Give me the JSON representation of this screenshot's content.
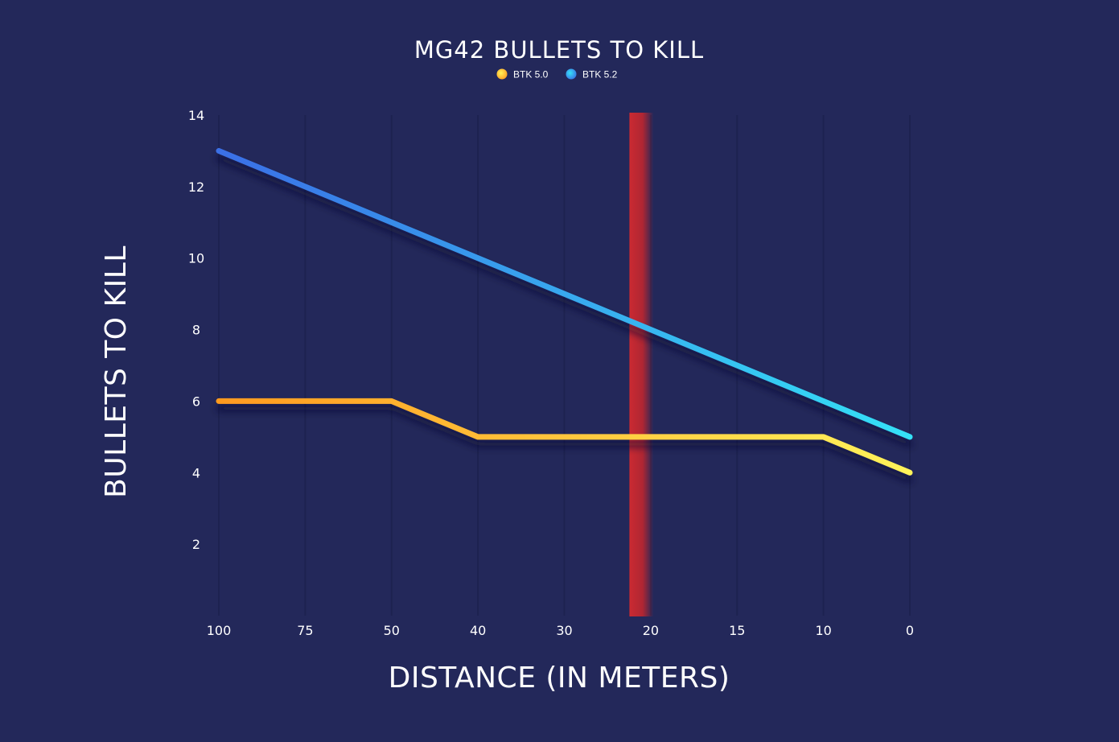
{
  "chart_data": {
    "type": "line",
    "title": "MG42 BULLETS TO KILL",
    "xlabel": "DISTANCE (IN METERS)",
    "ylabel": "BULLETS TO KILL",
    "x_categories": [
      "100",
      "75",
      "50",
      "40",
      "30",
      "20",
      "15",
      "10",
      "0"
    ],
    "yticks": [
      2,
      4,
      6,
      8,
      10,
      12,
      14
    ],
    "ylim": [
      0,
      14
    ],
    "grid": "vertical",
    "legend_position": "top-center",
    "highlight_distance": 22,
    "series": [
      {
        "name": "BTK 5.0",
        "color_start": "#ff9a1f",
        "color_end": "#fff35a",
        "points": [
          {
            "x": 100,
            "y": 6
          },
          {
            "x": 50,
            "y": 6
          },
          {
            "x": 40,
            "y": 5
          },
          {
            "x": 10,
            "y": 5
          },
          {
            "x": 0,
            "y": 4
          }
        ]
      },
      {
        "name": "BTK 5.2",
        "color_start": "#3a6fe6",
        "color_end": "#35e1f6",
        "points": [
          {
            "x": 100,
            "y": 13
          },
          {
            "x": 0,
            "y": 5
          }
        ]
      }
    ]
  },
  "colors": {
    "background": "#23285a",
    "gridline": "#1d2250",
    "highlight": "#d42a30"
  }
}
